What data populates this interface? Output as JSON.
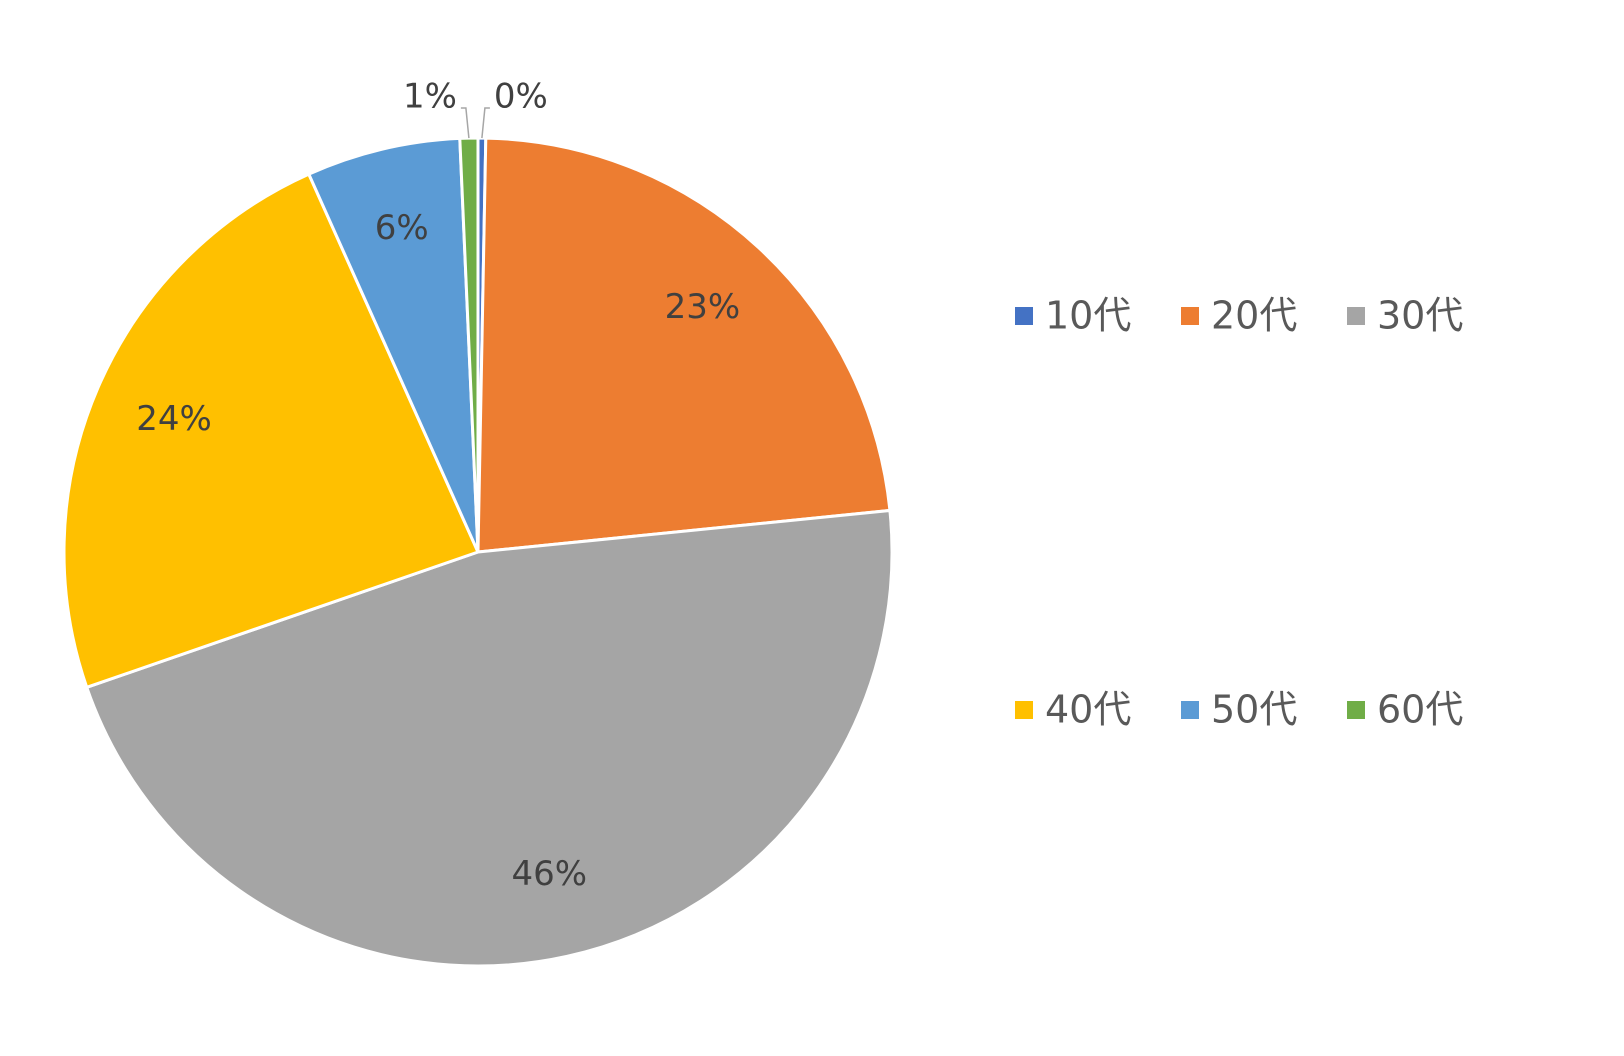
{
  "chart_data": {
    "type": "pie",
    "categories": [
      "10代",
      "20代",
      "30代",
      "40代",
      "50代",
      "60代"
    ],
    "values": [
      0.3,
      23.1,
      46.3,
      23.6,
      6.0,
      0.7
    ],
    "value_labels": [
      "0%",
      "23%",
      "46%",
      "24%",
      "6%",
      "1%"
    ],
    "colors": [
      "#4472c4",
      "#ed7d31",
      "#a5a5a5",
      "#ffc000",
      "#5b9bd5",
      "#70ad47"
    ],
    "legend": "right"
  }
}
